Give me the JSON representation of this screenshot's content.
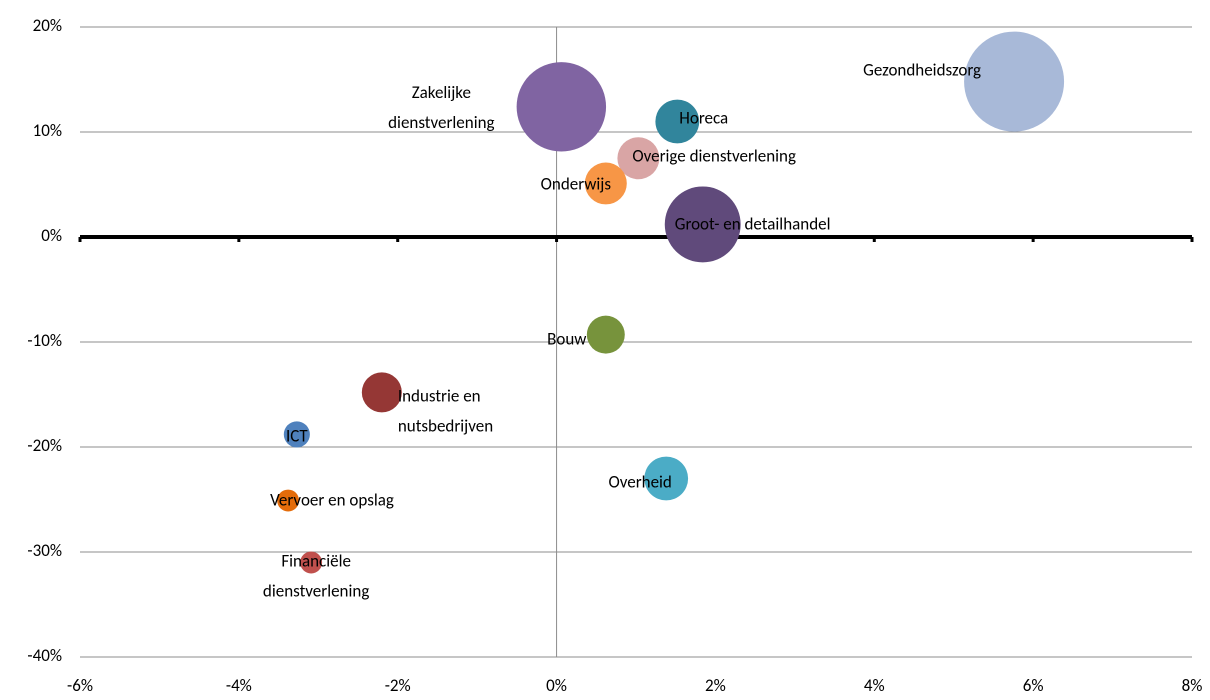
{
  "chart_data": {
    "type": "bubble",
    "xlim": [
      -6,
      8
    ],
    "xticks": [
      {
        "value": -6,
        "label": "-6%"
      },
      {
        "value": -4,
        "label": "-4%"
      },
      {
        "value": -2,
        "label": "-2%"
      },
      {
        "value": 0,
        "label": "0%"
      },
      {
        "value": 2,
        "label": "2%"
      },
      {
        "value": 4,
        "label": "4%"
      },
      {
        "value": 6,
        "label": "6%"
      },
      {
        "value": 8,
        "label": "8%"
      }
    ],
    "ylim": [
      -40,
      20
    ],
    "yticks": [
      {
        "value": -40,
        "label": "-40%"
      },
      {
        "value": -30,
        "label": "-30%"
      },
      {
        "value": -20,
        "label": "-20%"
      },
      {
        "value": -10,
        "label": "-10%"
      },
      {
        "value": 0,
        "label": "0%"
      },
      {
        "value": 10,
        "label": "10%"
      },
      {
        "value": 20,
        "label": "20%"
      }
    ],
    "grid": true,
    "series": [
      {
        "name": "Gezondheidszorg",
        "color": "#a8b9d8",
        "x": [
          5.76
        ],
        "values": [
          14.8
        ],
        "sizes": [
          25
        ]
      },
      {
        "name": "Zakelijke\ndienstverlening",
        "color": "#8064a2",
        "x": [
          0.06
        ],
        "values": [
          12.4
        ],
        "sizes": [
          20
        ]
      },
      {
        "name": "Horeca",
        "color": "#31859c",
        "x": [
          1.52
        ],
        "values": [
          11.0
        ],
        "sizes": [
          4.8
        ]
      },
      {
        "name": "Overige dienstverlening",
        "color": "#d9a5a5",
        "x": [
          1.03
        ],
        "values": [
          7.5
        ],
        "sizes": [
          4.4
        ]
      },
      {
        "name": "Onderwijs",
        "color": "#f79646",
        "x": [
          0.62
        ],
        "values": [
          5.1
        ],
        "sizes": [
          4.4
        ]
      },
      {
        "name": "Groot- en detailhandel",
        "color": "#604a7b",
        "x": [
          1.84
        ],
        "values": [
          1.2
        ],
        "sizes": [
          14.4
        ]
      },
      {
        "name": "Bouw",
        "color": "#77933c",
        "x": [
          0.62
        ],
        "values": [
          -9.3
        ],
        "sizes": [
          3.6
        ]
      },
      {
        "name": "Industrie en\nnutsbedrijven",
        "color": "#953735",
        "x": [
          -2.2
        ],
        "values": [
          -14.8
        ],
        "sizes": [
          4
        ]
      },
      {
        "name": "ICT",
        "color": "#4f81bd",
        "x": [
          -3.27
        ],
        "values": [
          -18.8
        ],
        "sizes": [
          1.7
        ]
      },
      {
        "name": "Overheid",
        "color": "#4bacc6",
        "x": [
          1.38
        ],
        "values": [
          -23.0
        ],
        "sizes": [
          4.8
        ]
      },
      {
        "name": "Vervoer en opslag",
        "color": "#e46c0a",
        "x": [
          -3.38
        ],
        "values": [
          -25.1
        ],
        "sizes": [
          1.2
        ]
      },
      {
        "name": "Financiële\ndienstverlening",
        "color": "#c0504d",
        "x": [
          -3.09
        ],
        "values": [
          -31.0
        ],
        "sizes": [
          1.2
        ]
      }
    ]
  }
}
